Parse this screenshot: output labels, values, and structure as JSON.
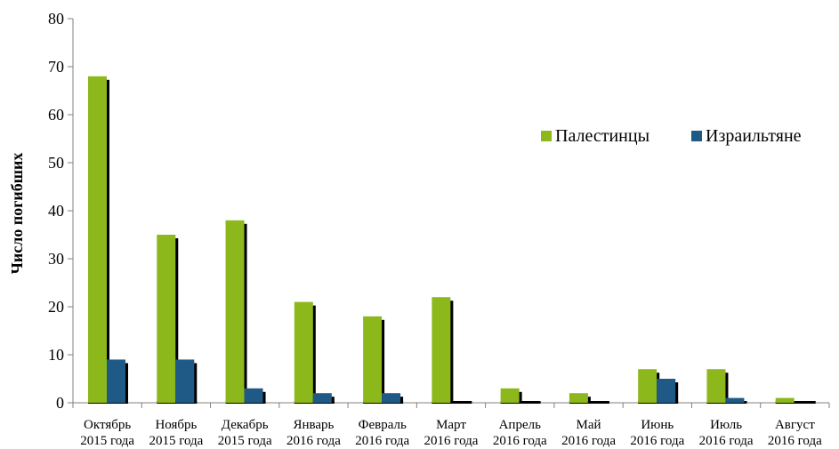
{
  "chart_data": {
    "type": "bar",
    "ylabel": "Число погибших",
    "ylim": [
      0,
      80
    ],
    "yticks": [
      0,
      10,
      20,
      30,
      40,
      50,
      60,
      70,
      80
    ],
    "legend_position": "right",
    "categories": [
      {
        "line1": "Октябрь",
        "line2": "2015 года"
      },
      {
        "line1": "Ноябрь",
        "line2": "2015 года"
      },
      {
        "line1": "Декабрь",
        "line2": "2015 года"
      },
      {
        "line1": "Январь",
        "line2": "2016 года"
      },
      {
        "line1": "Февраль",
        "line2": "2016 года"
      },
      {
        "line1": "Март",
        "line2": "2016 года"
      },
      {
        "line1": "Апрель",
        "line2": "2016 года"
      },
      {
        "line1": "Май",
        "line2": "2016 года"
      },
      {
        "line1": "Июнь",
        "line2": "2016 года"
      },
      {
        "line1": "Июль",
        "line2": "2016 года"
      },
      {
        "line1": "Август",
        "line2": "2016 года"
      }
    ],
    "series": [
      {
        "name": "Палестинцы",
        "color": "#8db81b",
        "values": [
          68,
          35,
          38,
          21,
          18,
          22,
          3,
          2,
          7,
          7,
          1
        ]
      },
      {
        "name": "Израильтяне",
        "color": "#1f5a86",
        "values": [
          9,
          9,
          3,
          2,
          2,
          0,
          0,
          0,
          5,
          1,
          0
        ]
      }
    ]
  }
}
